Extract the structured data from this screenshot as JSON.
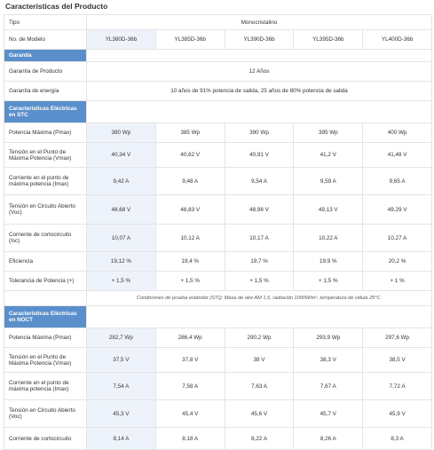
{
  "title": "Características del Producto",
  "rows": {
    "tipo": {
      "label": "Tipo",
      "value": "Monocristalino"
    },
    "modelo": {
      "label": "No. de Modelo",
      "values": [
        "YL380D-36b",
        "YL385D-36b",
        "YL390D-36b",
        "YL395D-36b",
        "YL400D-36b"
      ]
    },
    "garantia_header": "Garantía",
    "garantia_producto": {
      "label": "Garantía de Producto",
      "value": "12 Años"
    },
    "garantia_energia": {
      "label": "Garantía de energía",
      "value": "10 años de 91% potencia de salida, 25 años de 80% potencia de salida"
    }
  },
  "stc": {
    "header": "Características Eléctricas en STC",
    "pmax": {
      "label": "Potencia Máxima (Pmax)",
      "values": [
        "380 Wp",
        "385 Wp",
        "390 Wp",
        "395 Wp",
        "400 Wp"
      ]
    },
    "vmax": {
      "label": "Tensión en el Punto de Máxima Potencia (Vmax)",
      "values": [
        "40,34 V",
        "40,62 V",
        "40,91 V",
        "41,2 V",
        "41,48 V"
      ]
    },
    "imax": {
      "label": "Corriente en el punto de máxima potencia (Imax)",
      "values": [
        "9,42 A",
        "9,48 A",
        "9,54 A",
        "9,59 A",
        "9,65 A"
      ]
    },
    "voc": {
      "label": "Tensión en Circuito Abierto (Voc)",
      "values": [
        "48,68 V",
        "48,83 V",
        "48,98 V",
        "49,13 V",
        "49,29 V"
      ]
    },
    "isc": {
      "label": "Corriente de cortocircuito (Isc)",
      "values": [
        "10,07 A",
        "10,12 A",
        "10,17 A",
        "10,22 A",
        "10,27 A"
      ]
    },
    "eficiencia": {
      "label": "Eficiencia",
      "values": [
        "19,12 %",
        "19,4 %",
        "19,7 %",
        "19,9 %",
        "20,2 %"
      ]
    },
    "tolerancia": {
      "label": "Tolerancia de Potencia (+)",
      "values": [
        "+ 1,5 %",
        "+ 1,5 %",
        "+ 1,5 %",
        "+ 1,5 %",
        "+ 1 %"
      ]
    },
    "note": "Condiciones de prueba estándar (STQ: Masa de aire AM 1,5, radiación 1000W/m², temperatura de célula 25°C."
  },
  "noct": {
    "header": "Características Eléctricas en NOCT",
    "pmax": {
      "label": "Potencia Máxima (Pmax)",
      "values": [
        "282,7 Wp",
        "286,4 Wp",
        "290,2 Wp",
        "293,9 Wp",
        "297,6 Wp"
      ]
    },
    "vmax": {
      "label": "Tensión en el Punto de Máxima Potencia (Vmax)",
      "values": [
        "37,5 V",
        "37,8 V",
        "38 V",
        "38,3 V",
        "38,5 V"
      ]
    },
    "imax": {
      "label": "Corriente en el punto de máxima potencia (Imax)",
      "values": [
        "7,54 A",
        "7,58 A",
        "7,63 A",
        "7,67 A",
        "7,72 A"
      ]
    },
    "voc": {
      "label": "Tensión en Circuito Abierto (Voc)",
      "values": [
        "45,3 V",
        "45,4 V",
        "45,6 V",
        "45,7 V",
        "45,9 V"
      ]
    },
    "isc": {
      "label": "Corriente de cortocircuito",
      "values": [
        "8,14 A",
        "8,18 A",
        "8,22 A",
        "8,26 A",
        "8,3 A"
      ]
    }
  }
}
